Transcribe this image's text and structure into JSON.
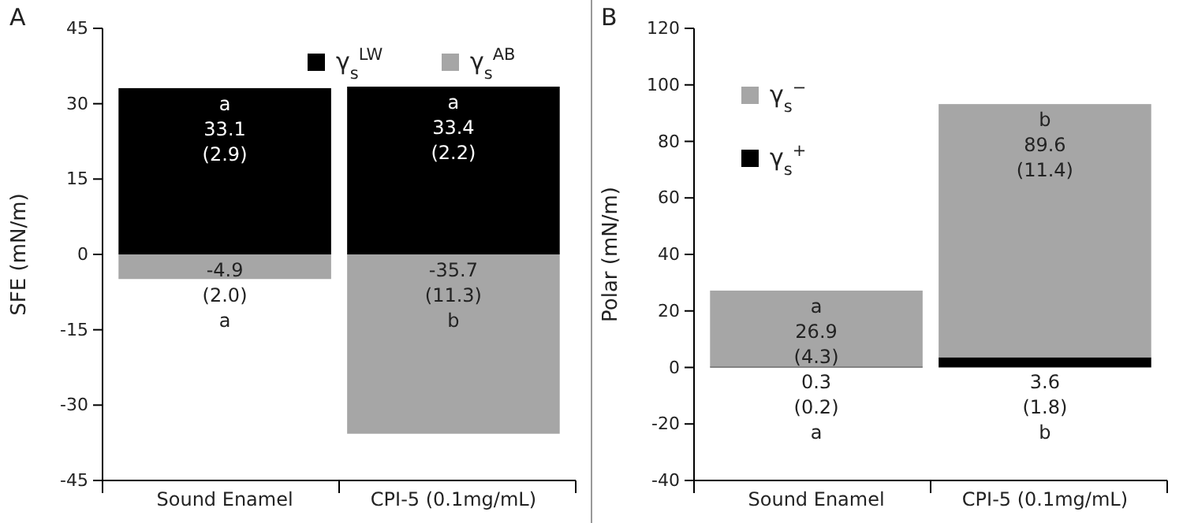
{
  "chart_data": [
    {
      "type": "bar",
      "title": "A",
      "ylabel": "SFE (mN/m)",
      "categories": [
        "Sound Enamel",
        "CPI-5 (0.1mg/mL)"
      ],
      "stacked": true,
      "ylim": [
        -45,
        45
      ],
      "yticks": [
        -45,
        -30,
        -15,
        0,
        15,
        30,
        45
      ],
      "grid": false,
      "legend": "top",
      "series": [
        {
          "name": "γ$_{s}$$^{LW}$",
          "color": "#000000",
          "values": [
            33.1,
            33.4
          ],
          "value_labels": [
            "a\n33.1\n(2.9)",
            "a\n33.4\n(2.2)"
          ]
        },
        {
          "name": "γ$_{s}$$^{AB}$",
          "color": "#a6a6a6",
          "values": [
            -4.9,
            -35.7
          ],
          "value_labels": [
            "-4.9\n(2.0)\na",
            "-35.7\n(11.3)\nb"
          ]
        }
      ]
    },
    {
      "type": "bar",
      "title": "B",
      "ylabel": "Polar (mN/m)",
      "categories": [
        "Sound Enamel",
        "CPI-5 (0.1mg/mL)"
      ],
      "stacked": true,
      "ylim": [
        -40,
        120
      ],
      "yticks": [
        -40,
        -20,
        0,
        20,
        40,
        60,
        80,
        100,
        120
      ],
      "grid": false,
      "legend": "top left",
      "series": [
        {
          "name": "γ$_{s}$$^{+}$",
          "color": "#000000",
          "values": [
            0.3,
            3.6
          ],
          "value_labels": [
            "0.3\n(0.2)\na",
            "3.6\n(1.8)\nb"
          ]
        },
        {
          "name": "γ$_{s}$$^{−}$",
          "color": "#a6a6a6",
          "values": [
            26.9,
            89.6
          ],
          "value_labels": [
            "a\n26.9\n(4.3)",
            "b\n89.6\n(11.4)"
          ]
        }
      ]
    }
  ]
}
